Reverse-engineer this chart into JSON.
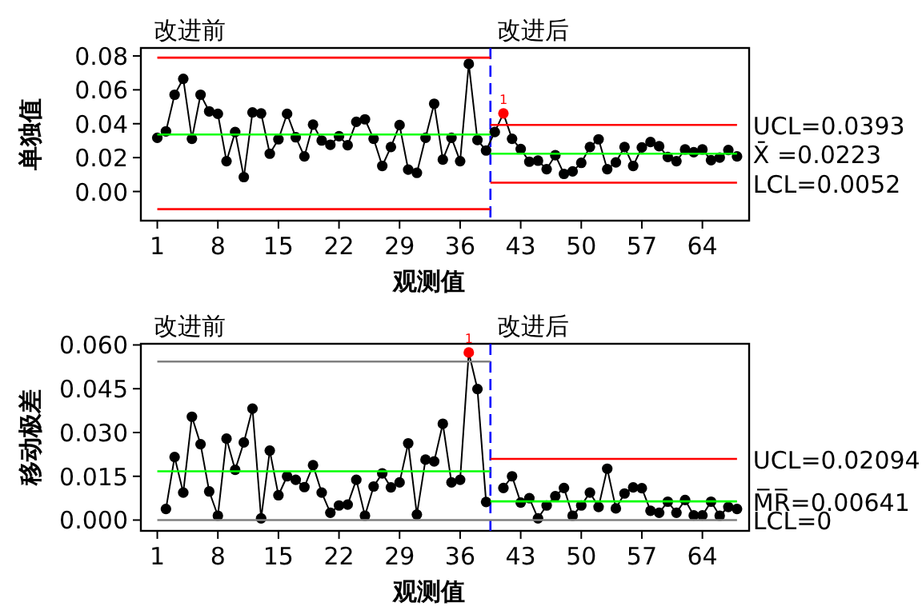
{
  "chart_data": [
    {
      "type": "line",
      "ylabel": "单独值",
      "xlabel": "观测值",
      "annotations": [
        "改进前",
        "改进后",
        {
          "text": "1",
          "x": 41,
          "y": 0.0461
        },
        {
          "text": "UCL=0.0393",
          "x": 68,
          "y": 0.0393
        },
        {
          "text": "X̄ =0.0223",
          "x": 68,
          "y": 0.0223
        },
        {
          "text": "LCL=0.0052",
          "x": 68,
          "y": 0.0052
        }
      ],
      "x": [
        1,
        2,
        3,
        4,
        5,
        6,
        7,
        8,
        9,
        10,
        11,
        12,
        13,
        14,
        15,
        16,
        17,
        18,
        19,
        20,
        21,
        22,
        23,
        24,
        25,
        26,
        27,
        28,
        29,
        30,
        31,
        32,
        33,
        34,
        35,
        36,
        37,
        38,
        39,
        40,
        41,
        42,
        43,
        44,
        45,
        46,
        47,
        48,
        49,
        50,
        51,
        52,
        53,
        54,
        55,
        56,
        57,
        58,
        59,
        60,
        61,
        62,
        63,
        64,
        65,
        66,
        67,
        68
      ],
      "xlim": [
        -0.9,
        69.4
      ],
      "xticks": [
        1,
        8,
        15,
        22,
        29,
        36,
        43,
        50,
        57,
        64
      ],
      "ylim": [
        -0.0172,
        0.0847
      ],
      "yticks": [
        {
          "value": 0,
          "label": "0.00"
        },
        {
          "value": 0.02,
          "label": "0.02"
        },
        {
          "value": 0.04,
          "label": "0.04"
        },
        {
          "value": 0.06,
          "label": "0.06"
        },
        {
          "value": 0.08,
          "label": "0.08"
        }
      ],
      "grid": false,
      "marker": "circle",
      "ref_lines": [
        {
          "axis": "x",
          "value": 39.5,
          "color": "#0000ff",
          "line_style": "dashed"
        }
      ],
      "series": [
        {
          "color": "#000000",
          "values": [
            0.0317,
            0.0355,
            0.0571,
            0.0665,
            0.0311,
            0.0571,
            0.0473,
            0.0458,
            0.0179,
            0.0351,
            0.0085,
            0.0467,
            0.0461,
            0.0223,
            0.0308,
            0.0458,
            0.032,
            0.0207,
            0.0395,
            0.0301,
            0.0276,
            0.0326,
            0.0273,
            0.0411,
            0.0426,
            0.0311,
            0.0151,
            0.0263,
            0.0392,
            0.0129,
            0.011,
            0.0317,
            0.0518,
            0.0188,
            0.0317,
            0.0179,
            0.0753,
            0.0304,
            0.0242,
            0.0351,
            0.0461,
            0.0311,
            0.0251,
            0.0176,
            0.0182,
            0.0132,
            0.0214,
            0.0104,
            0.0119,
            0.0169,
            0.0263,
            0.0308,
            0.0132,
            0.0172,
            0.0263,
            0.0151,
            0.026,
            0.0292,
            0.0267,
            0.0204,
            0.0179,
            0.0248,
            0.0232,
            0.0248,
            0.0185,
            0.02,
            0.0245,
            0.0207
          ],
          "colors": [
            "#000000",
            "#000000",
            "#000000",
            "#000000",
            "#000000",
            "#000000",
            "#000000",
            "#000000",
            "#000000",
            "#000000",
            "#000000",
            "#000000",
            "#000000",
            "#000000",
            "#000000",
            "#000000",
            "#000000",
            "#000000",
            "#000000",
            "#000000",
            "#000000",
            "#000000",
            "#000000",
            "#000000",
            "#000000",
            "#000000",
            "#000000",
            "#000000",
            "#000000",
            "#000000",
            "#000000",
            "#000000",
            "#000000",
            "#000000",
            "#000000",
            "#000000",
            "#000000",
            "#000000",
            "#000000",
            "#000000",
            "#ff0000",
            "#000000",
            "#000000",
            "#000000",
            "#000000",
            "#000000",
            "#000000",
            "#000000",
            "#000000",
            "#000000",
            "#000000",
            "#000000",
            "#000000",
            "#000000",
            "#000000",
            "#000000",
            "#000000",
            "#000000",
            "#000000",
            "#000000",
            "#000000",
            "#000000",
            "#000000",
            "#000000",
            "#000000",
            "#000000",
            "#000000",
            "#000000"
          ]
        },
        {
          "type": "line",
          "marker": "none",
          "color": "#ff0000",
          "x": [
            1,
            39.5
          ],
          "values": [
            0.079,
            0.079
          ]
        },
        {
          "type": "line",
          "marker": "none",
          "color": "#00ff00",
          "x": [
            1,
            39.5
          ],
          "values": [
            0.0336,
            0.0336
          ]
        },
        {
          "type": "line",
          "marker": "none",
          "color": "#ff0000",
          "x": [
            1,
            39.5
          ],
          "values": [
            -0.0104,
            -0.0104
          ]
        },
        {
          "type": "line",
          "marker": "none",
          "color": "#ff0000",
          "x": [
            39.5,
            68
          ],
          "values": [
            0.0393,
            0.0393
          ]
        },
        {
          "type": "line",
          "marker": "none",
          "color": "#00ff00",
          "x": [
            39.5,
            68
          ],
          "values": [
            0.0223,
            0.0223
          ]
        },
        {
          "type": "line",
          "marker": "none",
          "color": "#ff0000",
          "x": [
            39.5,
            68
          ],
          "values": [
            0.0052,
            0.0052
          ]
        }
      ]
    },
    {
      "type": "line",
      "ylabel": "移动极差",
      "xlabel": "观测值",
      "annotations": [
        "改进前",
        "改进后",
        {
          "text": "1",
          "x": 37,
          "y": 0.0574
        },
        {
          "text": "UCL=0.02094",
          "x": 68,
          "y": 0.02094
        },
        {
          "text": "M̅R̅=0.00641",
          "x": 68,
          "y": 0.00641
        },
        {
          "text": "LCL=0",
          "x": 68,
          "y": 0
        }
      ],
      "x": [
        2,
        3,
        4,
        5,
        6,
        7,
        8,
        9,
        10,
        11,
        12,
        13,
        14,
        15,
        16,
        17,
        18,
        19,
        20,
        21,
        22,
        23,
        24,
        25,
        26,
        27,
        28,
        29,
        30,
        31,
        32,
        33,
        34,
        35,
        36,
        37,
        38,
        39,
        40,
        41,
        42,
        43,
        44,
        45,
        46,
        47,
        48,
        49,
        50,
        51,
        52,
        53,
        54,
        55,
        56,
        57,
        58,
        59,
        60,
        61,
        62,
        63,
        64,
        65,
        66,
        67,
        68
      ],
      "xlim": [
        -0.9,
        69.4
      ],
      "xticks": [
        1,
        8,
        15,
        22,
        29,
        36,
        43,
        50,
        57,
        64
      ],
      "ylim": [
        -0.0037,
        0.0604
      ],
      "yticks": [
        {
          "value": 0,
          "label": "0.000"
        },
        {
          "value": 0.015,
          "label": "0.015"
        },
        {
          "value": 0.03,
          "label": "0.030"
        },
        {
          "value": 0.045,
          "label": "0.045"
        },
        {
          "value": 0.06,
          "label": "0.060"
        }
      ],
      "grid": false,
      "marker": "circle",
      "ref_lines": [
        {
          "axis": "x",
          "value": 39.5,
          "color": "#0000ff",
          "line_style": "dashed"
        }
      ],
      "series": [
        {
          "color": "#000000",
          "values": [
            0.0038,
            0.0216,
            0.0094,
            0.0354,
            0.026,
            0.0098,
            0.0015,
            0.0279,
            0.0172,
            0.0266,
            0.0382,
            0.0006,
            0.0238,
            0.0085,
            0.015,
            0.0138,
            0.0113,
            0.0188,
            0.0094,
            0.0025,
            0.005,
            0.0053,
            0.0138,
            0.0015,
            0.0115,
            0.016,
            0.0112,
            0.0129,
            0.0263,
            0.0019,
            0.0207,
            0.0201,
            0.033,
            0.0129,
            0.0138,
            0.0574,
            0.0449,
            0.0062,
            null,
            0.011,
            0.015,
            0.006,
            0.0075,
            0.0006,
            0.005,
            0.0082,
            0.011,
            0.0015,
            0.005,
            0.0094,
            0.0045,
            0.0176,
            0.004,
            0.0091,
            0.0112,
            0.0109,
            0.0032,
            0.0025,
            0.0063,
            0.0025,
            0.0069,
            0.0016,
            0.0016,
            0.0063,
            0.0015,
            0.0045,
            0.0038
          ],
          "colors": [
            "#000000",
            "#000000",
            "#000000",
            "#000000",
            "#000000",
            "#000000",
            "#000000",
            "#000000",
            "#000000",
            "#000000",
            "#000000",
            "#000000",
            "#000000",
            "#000000",
            "#000000",
            "#000000",
            "#000000",
            "#000000",
            "#000000",
            "#000000",
            "#000000",
            "#000000",
            "#000000",
            "#000000",
            "#000000",
            "#000000",
            "#000000",
            "#000000",
            "#000000",
            "#000000",
            "#000000",
            "#000000",
            "#000000",
            "#000000",
            "#000000",
            "#ff0000",
            "#000000",
            "#000000",
            null,
            "#000000",
            "#000000",
            "#000000",
            "#000000",
            "#000000",
            "#000000",
            "#000000",
            "#000000",
            "#000000",
            "#000000",
            "#000000",
            "#000000",
            "#000000",
            "#000000",
            "#000000",
            "#000000",
            "#000000",
            "#000000",
            "#000000",
            "#000000",
            "#000000",
            "#000000",
            "#000000",
            "#000000",
            "#000000",
            "#000000",
            "#000000",
            "#000000"
          ]
        },
        {
          "type": "line",
          "marker": "none",
          "color": "#808080",
          "x": [
            1,
            39.5
          ],
          "values": [
            0.0543,
            0.0543
          ]
        },
        {
          "type": "line",
          "marker": "none",
          "color": "#00ff00",
          "x": [
            1,
            39.5
          ],
          "values": [
            0.0167,
            0.0167
          ]
        },
        {
          "type": "line",
          "marker": "none",
          "color": "#808080",
          "x": [
            1,
            68
          ],
          "values": [
            0,
            0
          ]
        },
        {
          "type": "line",
          "marker": "none",
          "color": "#ff0000",
          "x": [
            39.5,
            68
          ],
          "values": [
            0.02094,
            0.02094
          ]
        },
        {
          "type": "line",
          "marker": "none",
          "color": "#00ff00",
          "x": [
            39.5,
            68
          ],
          "values": [
            0.00641,
            0.00641
          ]
        }
      ]
    }
  ]
}
